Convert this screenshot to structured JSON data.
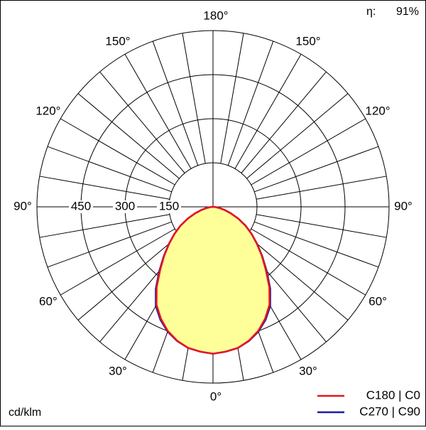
{
  "chart_data": {
    "type": "polar",
    "unit_label": "cd/klm",
    "efficiency": {
      "label": "η:",
      "value": 91,
      "value_label": "91%"
    },
    "x": [
      0,
      5,
      10,
      15,
      20,
      25,
      30,
      35,
      40,
      45,
      50,
      55,
      60,
      65,
      70,
      75,
      80,
      85,
      90
    ],
    "series": [
      {
        "name": "C180 | C0",
        "color": "#e8141e",
        "values": [
          500,
          495,
          488,
          472,
          450,
          420,
          385,
          335,
          280,
          235,
          195,
          160,
          128,
          95,
          64,
          40,
          22,
          8,
          0
        ]
      },
      {
        "name": "C270 | C90",
        "color": "#1c1ca0",
        "values": [
          500,
          495,
          488,
          473,
          452,
          424,
          390,
          340,
          284,
          237,
          196,
          160,
          128,
          95,
          64,
          40,
          22,
          8,
          0
        ]
      }
    ],
    "fill_color": "#ffff99",
    "rlim": [
      0,
      600
    ],
    "rticks": [
      150,
      300,
      450
    ],
    "angle_grid_step": 10,
    "angle_ticks": [
      {
        "value": 0,
        "label": "0°"
      },
      {
        "value": 30,
        "label": "30°"
      },
      {
        "value": 60,
        "label": "60°"
      },
      {
        "value": 90,
        "label": "90°"
      },
      {
        "value": 120,
        "label": "120°"
      },
      {
        "value": 150,
        "label": "150°"
      },
      {
        "value": 180,
        "label": "180°"
      }
    ]
  }
}
